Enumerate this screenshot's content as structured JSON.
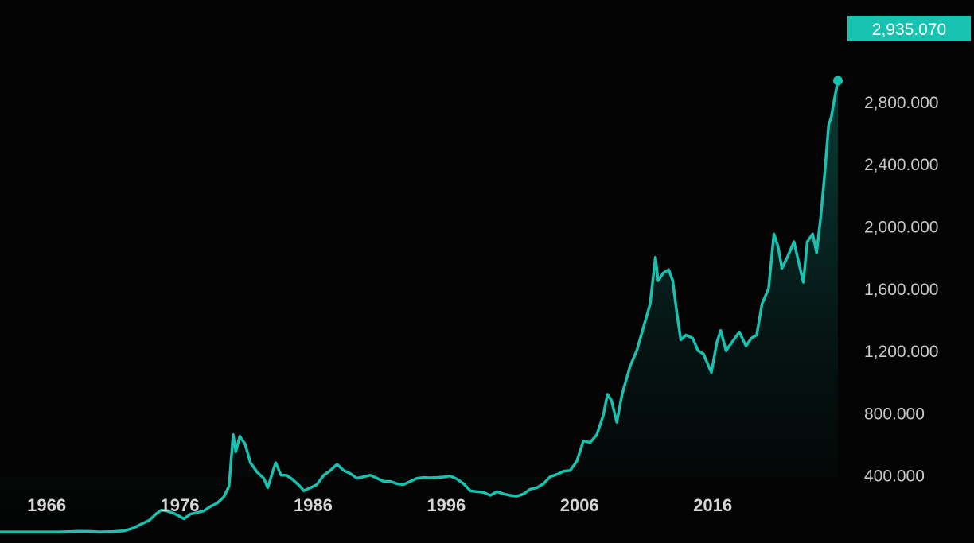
{
  "colors": {
    "background": "#030303",
    "line": "#17c2b0",
    "badge": "#17c2b0",
    "tick_text": "#c9c9c9"
  },
  "chart_data": {
    "type": "area",
    "title": "",
    "xlabel": "",
    "ylabel": "",
    "y_axis_position": "right",
    "grid": false,
    "xlim": [
      1962.5,
      2025.4
    ],
    "ylim": [
      0,
      3000
    ],
    "x_tick_labels": [
      "1966",
      "1976",
      "1986",
      "1996",
      "2006",
      "2016"
    ],
    "x_ticks": [
      1966,
      1976,
      1986,
      1996,
      2006,
      2016
    ],
    "y_tick_labels": [
      "400.000",
      "800.000",
      "1,200.000",
      "1,600.000",
      "2,000.000",
      "2,400.000",
      "2,800.000"
    ],
    "y_ticks": [
      400,
      800,
      1200,
      1600,
      2000,
      2400,
      2800
    ],
    "last_value_label": "2,935.070",
    "series": [
      {
        "points": [
          [
            1962.5,
            35
          ],
          [
            1966.0,
            35
          ],
          [
            1967.0,
            35
          ],
          [
            1967.8,
            38
          ],
          [
            1968.5,
            40
          ],
          [
            1969.2,
            39
          ],
          [
            1970.0,
            35
          ],
          [
            1971.0,
            38
          ],
          [
            1971.8,
            42
          ],
          [
            1972.5,
            60
          ],
          [
            1973.2,
            90
          ],
          [
            1973.7,
            110
          ],
          [
            1974.2,
            150
          ],
          [
            1974.6,
            175
          ],
          [
            1975.0,
            170
          ],
          [
            1975.4,
            160
          ],
          [
            1975.8,
            145
          ],
          [
            1976.3,
            120
          ],
          [
            1976.8,
            150
          ],
          [
            1977.3,
            160
          ],
          [
            1977.8,
            170
          ],
          [
            1978.3,
            200
          ],
          [
            1978.8,
            220
          ],
          [
            1979.3,
            260
          ],
          [
            1979.7,
            330
          ],
          [
            1980.0,
            660
          ],
          [
            1980.2,
            550
          ],
          [
            1980.5,
            650
          ],
          [
            1980.9,
            600
          ],
          [
            1981.3,
            480
          ],
          [
            1981.8,
            420
          ],
          [
            1982.3,
            380
          ],
          [
            1982.6,
            320
          ],
          [
            1983.0,
            430
          ],
          [
            1983.2,
            480
          ],
          [
            1983.6,
            400
          ],
          [
            1984.0,
            400
          ],
          [
            1984.5,
            370
          ],
          [
            1985.0,
            330
          ],
          [
            1985.3,
            300
          ],
          [
            1985.8,
            320
          ],
          [
            1986.3,
            340
          ],
          [
            1986.8,
            400
          ],
          [
            1987.3,
            430
          ],
          [
            1987.8,
            470
          ],
          [
            1988.3,
            430
          ],
          [
            1988.8,
            410
          ],
          [
            1989.3,
            380
          ],
          [
            1989.8,
            390
          ],
          [
            1990.3,
            400
          ],
          [
            1990.8,
            380
          ],
          [
            1991.3,
            360
          ],
          [
            1991.8,
            360
          ],
          [
            1992.3,
            345
          ],
          [
            1992.8,
            340
          ],
          [
            1993.3,
            360
          ],
          [
            1993.8,
            380
          ],
          [
            1994.3,
            385
          ],
          [
            1994.8,
            383
          ],
          [
            1995.3,
            385
          ],
          [
            1995.8,
            388
          ],
          [
            1996.3,
            395
          ],
          [
            1996.8,
            375
          ],
          [
            1997.3,
            345
          ],
          [
            1997.8,
            300
          ],
          [
            1998.3,
            295
          ],
          [
            1998.8,
            290
          ],
          [
            1999.3,
            270
          ],
          [
            1999.8,
            295
          ],
          [
            2000.3,
            280
          ],
          [
            2000.8,
            270
          ],
          [
            2001.3,
            265
          ],
          [
            2001.8,
            280
          ],
          [
            2002.3,
            310
          ],
          [
            2002.8,
            320
          ],
          [
            2003.3,
            345
          ],
          [
            2003.8,
            390
          ],
          [
            2004.3,
            405
          ],
          [
            2004.8,
            425
          ],
          [
            2005.3,
            430
          ],
          [
            2005.8,
            490
          ],
          [
            2006.3,
            620
          ],
          [
            2006.8,
            610
          ],
          [
            2007.3,
            660
          ],
          [
            2007.8,
            790
          ],
          [
            2008.1,
            920
          ],
          [
            2008.4,
            880
          ],
          [
            2008.8,
            740
          ],
          [
            2009.2,
            920
          ],
          [
            2009.8,
            1100
          ],
          [
            2010.3,
            1200
          ],
          [
            2010.8,
            1350
          ],
          [
            2011.3,
            1500
          ],
          [
            2011.7,
            1800
          ],
          [
            2011.9,
            1650
          ],
          [
            2012.3,
            1700
          ],
          [
            2012.7,
            1720
          ],
          [
            2013.0,
            1650
          ],
          [
            2013.3,
            1450
          ],
          [
            2013.6,
            1270
          ],
          [
            2014.0,
            1300
          ],
          [
            2014.5,
            1280
          ],
          [
            2014.9,
            1200
          ],
          [
            2015.3,
            1180
          ],
          [
            2015.9,
            1060
          ],
          [
            2016.3,
            1250
          ],
          [
            2016.6,
            1330
          ],
          [
            2017.0,
            1200
          ],
          [
            2017.5,
            1260
          ],
          [
            2018.0,
            1320
          ],
          [
            2018.5,
            1230
          ],
          [
            2018.9,
            1280
          ],
          [
            2019.3,
            1300
          ],
          [
            2019.7,
            1500
          ],
          [
            2020.2,
            1600
          ],
          [
            2020.6,
            1950
          ],
          [
            2020.9,
            1870
          ],
          [
            2021.2,
            1730
          ],
          [
            2021.6,
            1800
          ],
          [
            2022.1,
            1900
          ],
          [
            2022.5,
            1750
          ],
          [
            2022.8,
            1640
          ],
          [
            2023.1,
            1900
          ],
          [
            2023.5,
            1950
          ],
          [
            2023.8,
            1830
          ],
          [
            2024.1,
            2050
          ],
          [
            2024.4,
            2330
          ],
          [
            2024.7,
            2650
          ],
          [
            2024.9,
            2700
          ],
          [
            2025.1,
            2800
          ],
          [
            2025.4,
            2935.07
          ]
        ]
      }
    ]
  }
}
